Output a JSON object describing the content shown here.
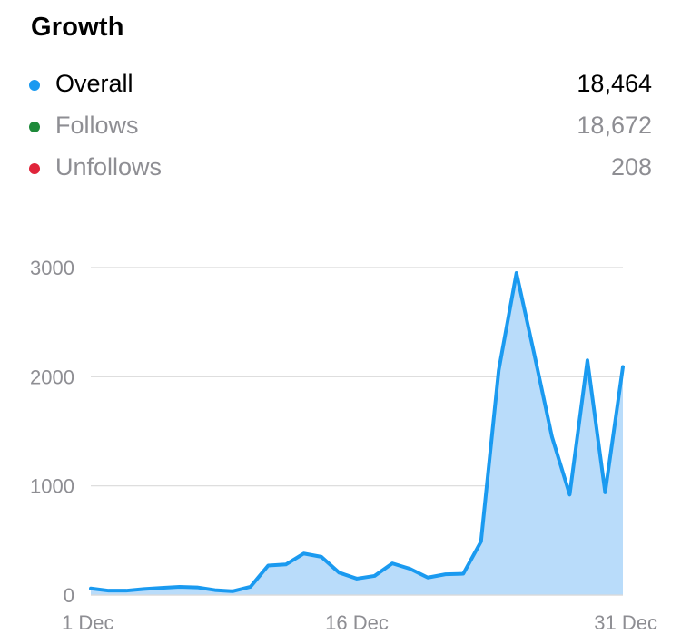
{
  "header": {
    "title": "Growth"
  },
  "legend": [
    {
      "label": "Overall",
      "value": "18,464",
      "color": "#1a9af0",
      "muted": false
    },
    {
      "label": "Follows",
      "value": "18,672",
      "color": "#1e8a3a",
      "muted": true
    },
    {
      "label": "Unfollows",
      "value": "208",
      "color": "#e0243a",
      "muted": true
    }
  ],
  "chart_data": {
    "type": "area",
    "x": [
      "1 Dec",
      "2 Dec",
      "3 Dec",
      "4 Dec",
      "5 Dec",
      "6 Dec",
      "7 Dec",
      "8 Dec",
      "9 Dec",
      "10 Dec",
      "11 Dec",
      "12 Dec",
      "13 Dec",
      "14 Dec",
      "15 Dec",
      "16 Dec",
      "17 Dec",
      "18 Dec",
      "19 Dec",
      "20 Dec",
      "21 Dec",
      "22 Dec",
      "23 Dec",
      "24 Dec",
      "25 Dec",
      "26 Dec",
      "27 Dec",
      "28 Dec",
      "29 Dec",
      "30 Dec",
      "31 Dec"
    ],
    "series": [
      {
        "name": "Overall",
        "color": "#1a9af0",
        "fill": "#b9dcfa",
        "values": [
          60,
          40,
          40,
          55,
          65,
          75,
          70,
          45,
          35,
          75,
          270,
          280,
          380,
          350,
          205,
          150,
          175,
          290,
          240,
          160,
          190,
          195,
          490,
          2060,
          2950,
          2210,
          1450,
          920,
          2150,
          940,
          2090
        ]
      }
    ],
    "ylim": [
      0,
      3000
    ],
    "yticks": [
      "0",
      "1000",
      "2000",
      "3000"
    ],
    "ytick_values": [
      0,
      1000,
      2000,
      3000
    ],
    "xtick_labels": [
      "1 Dec",
      "16 Dec",
      "31 Dec"
    ],
    "xtick_indices": [
      0,
      15,
      30
    ],
    "grid": true,
    "gridline_color": "#d9d9d9"
  }
}
